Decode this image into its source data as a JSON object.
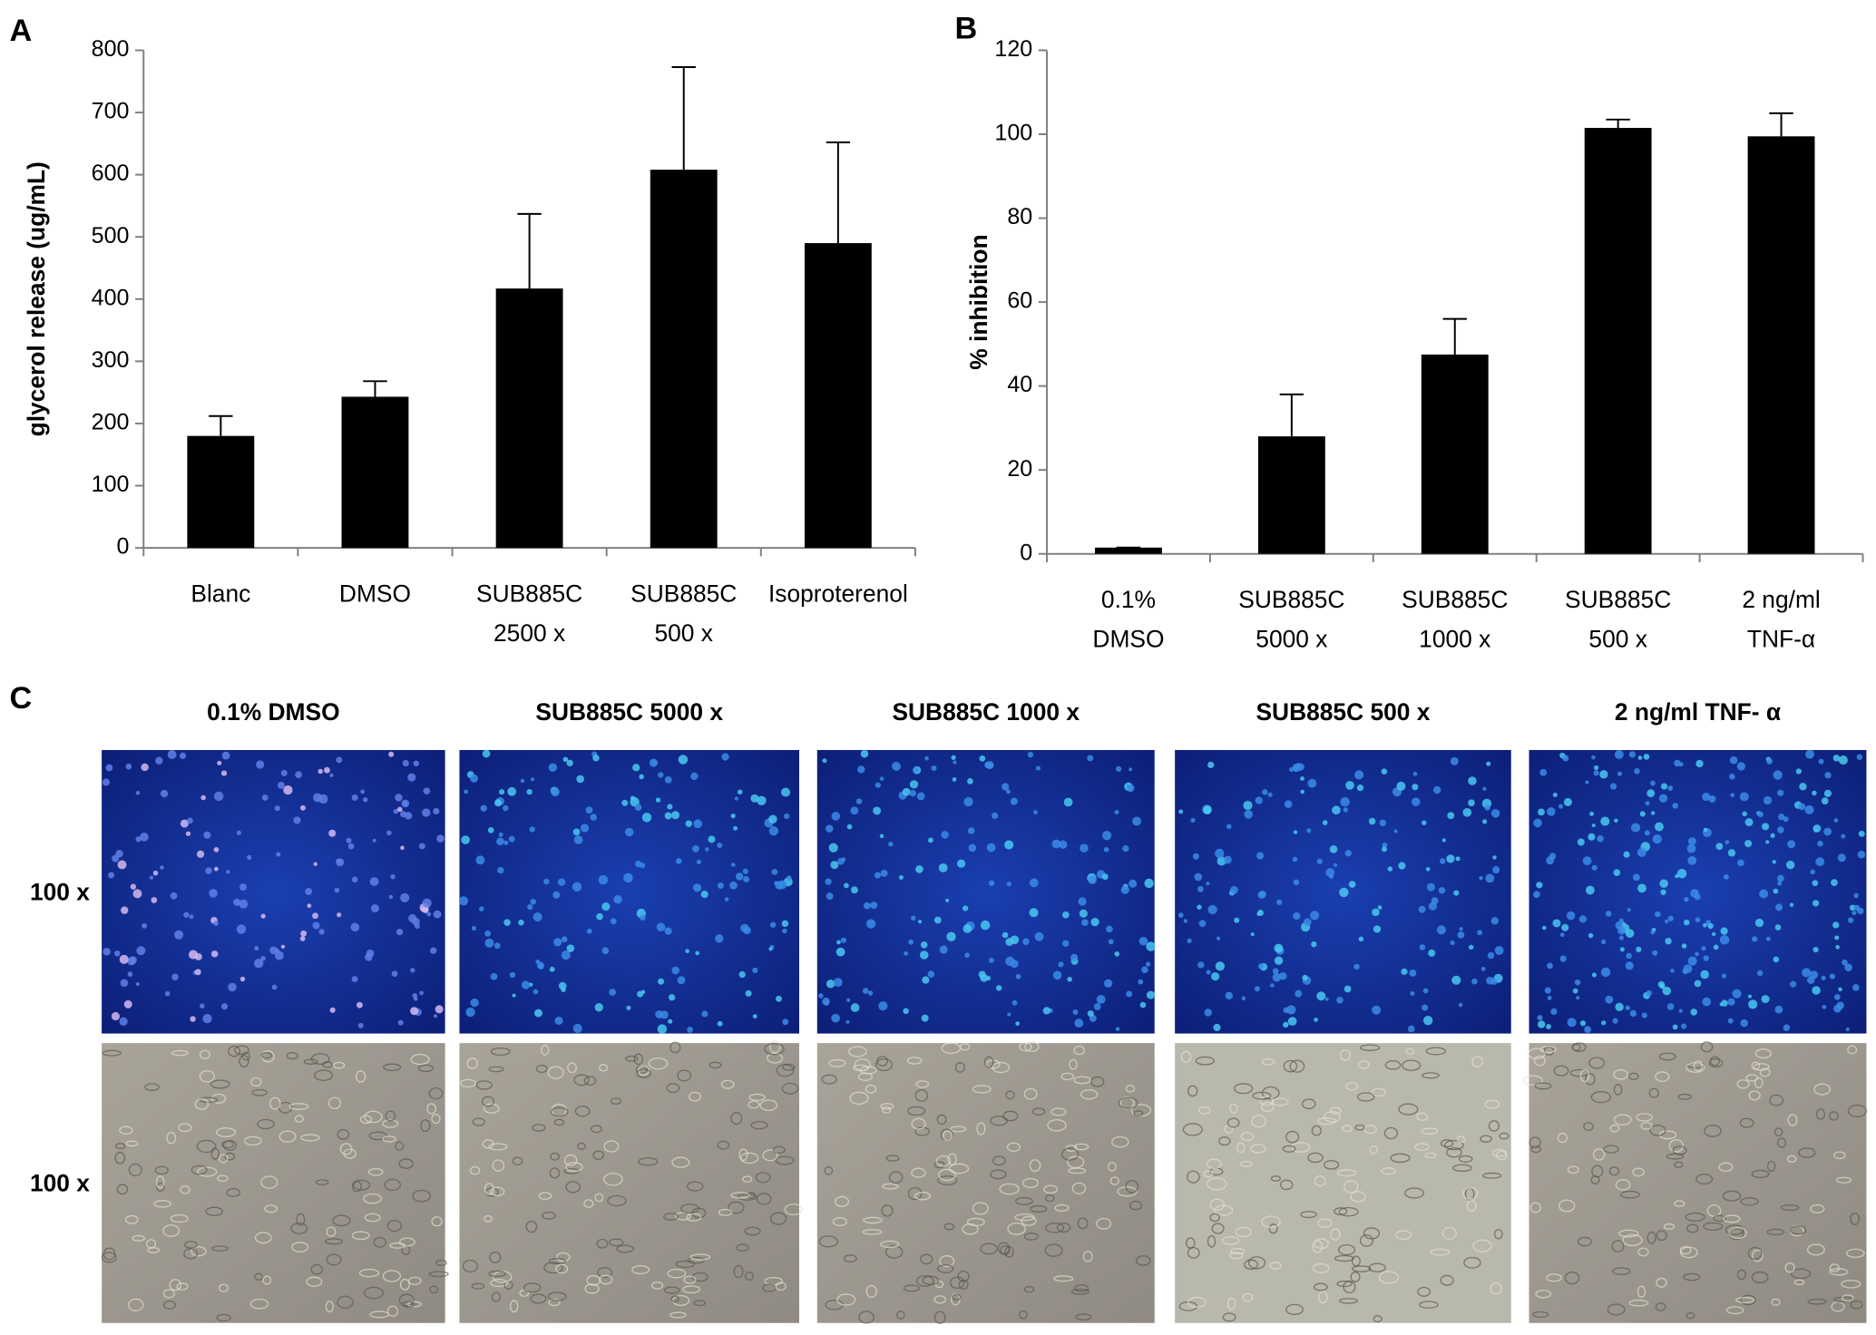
{
  "chart_data": [
    {
      "type": "bar",
      "panel": "A",
      "ylabel": "glycerol release (ug/mL)",
      "categories": [
        [
          "Blanc"
        ],
        [
          "DMSO"
        ],
        [
          "SUB885C",
          "2500 x"
        ],
        [
          "SUB885C",
          "500 x"
        ],
        [
          "Isoproterenol"
        ]
      ],
      "values": [
        180,
        243,
        417,
        608,
        490
      ],
      "errors": [
        32,
        25,
        120,
        165,
        162
      ],
      "color": "#000000",
      "ylim": [
        0,
        800
      ],
      "yticks": [
        0,
        100,
        200,
        300,
        400,
        500,
        600,
        700,
        800
      ]
    },
    {
      "type": "bar",
      "panel": "B",
      "ylabel": "% inhibition",
      "categories": [
        [
          "0.1%",
          "DMSO"
        ],
        [
          "SUB885C",
          "5000 x"
        ],
        [
          "SUB885C",
          "1000 x"
        ],
        [
          "SUB885C",
          "500 x"
        ],
        [
          "2 ng/ml",
          "TNF-α"
        ]
      ],
      "values": [
        1.5,
        28,
        47.5,
        101.5,
        99.5
      ],
      "errors": [
        0,
        10,
        8.5,
        2,
        5.5
      ],
      "color": "#000000",
      "ylim": [
        0,
        120
      ],
      "yticks": [
        0,
        20,
        40,
        60,
        80,
        100,
        120
      ]
    }
  ],
  "panel_c": {
    "label": "C",
    "columns": [
      "0.1% DMSO",
      "SUB885C 5000 x",
      "SUB885C 1000 x",
      "SUB885C 500 x",
      "2 ng/ml TNF- α"
    ],
    "rows": [
      "100 x",
      "100 x"
    ]
  }
}
